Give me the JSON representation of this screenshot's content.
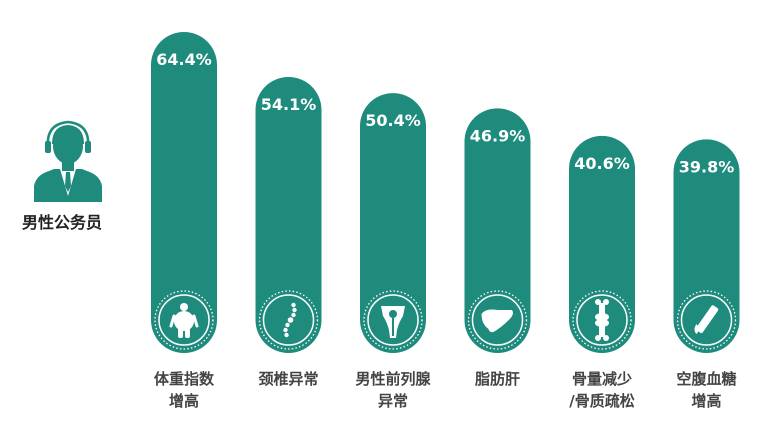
{
  "chart_data": {
    "type": "bar",
    "group_label": "男性公务员",
    "categories": [
      [
        "体重指数",
        "增高"
      ],
      [
        "颈椎异常"
      ],
      [
        "男性前列腺",
        "异常"
      ],
      [
        "脂肪肝"
      ],
      [
        "骨量减少",
        "/骨质疏松"
      ],
      [
        "空腹血糖",
        "增高"
      ]
    ],
    "values": [
      64.4,
      54.1,
      50.4,
      46.9,
      40.6,
      39.8
    ],
    "value_labels": [
      "64.4%",
      "54.1%",
      "50.4%",
      "46.9%",
      "40.6%",
      "39.8%"
    ],
    "icons": [
      "obesity-icon",
      "spine-icon",
      "prostate-icon",
      "liver-icon",
      "bone-joint-icon",
      "blood-sugar-test-icon"
    ],
    "unit": "%",
    "ylim": [
      0,
      64.4
    ],
    "colors": {
      "bar": "#1e8b7d",
      "icon_ring": "#ffffff",
      "label": "#444444",
      "person": "#1e8b7d"
    },
    "grid": false,
    "legend": "none"
  }
}
